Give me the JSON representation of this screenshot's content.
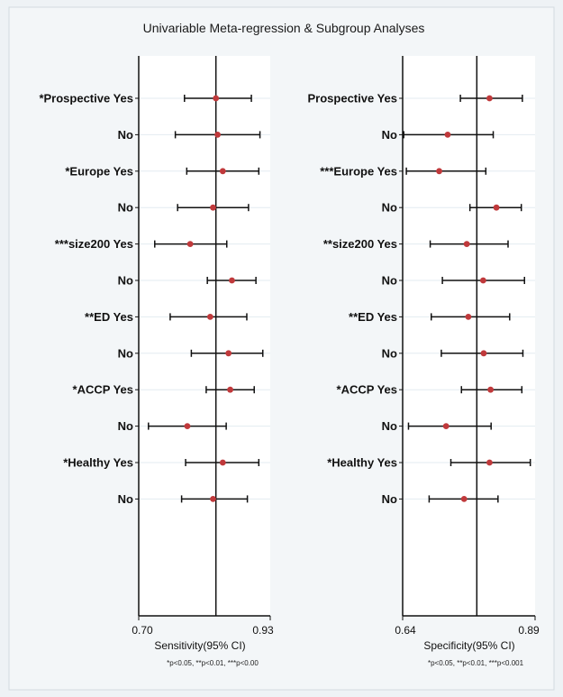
{
  "chart_data": {
    "type": "forest",
    "title": "Univariable Meta-regression & Subgroup Analyses",
    "rows": [
      "*Prospective Yes",
      "No",
      "*Europe Yes",
      "No",
      "***size200 Yes",
      "No",
      "**ED Yes",
      "No",
      "*ACCP Yes",
      "No",
      "*Healthy Yes",
      "No"
    ],
    "panels": [
      {
        "name": "sensitivity",
        "row_labels": [
          "*Prospective Yes",
          "No",
          "*Europe Yes",
          "No",
          "***size200 Yes",
          "No",
          "**ED Yes",
          "No",
          "*ACCP Yes",
          "No",
          "*Healthy Yes",
          "No"
        ],
        "xlabel": "Sensitivity(95% CI)",
        "xlim": [
          0.7,
          0.93
        ],
        "ticks": [
          "0.70",
          "0.93"
        ],
        "ref_line": 0.835,
        "estimates": [
          0.835,
          0.838,
          0.847,
          0.83,
          0.79,
          0.863,
          0.825,
          0.857,
          0.86,
          0.785,
          0.847,
          0.83
        ],
        "ci_low": [
          0.78,
          0.764,
          0.784,
          0.768,
          0.728,
          0.82,
          0.755,
          0.792,
          0.818,
          0.717,
          0.782,
          0.775
        ],
        "ci_high": [
          0.897,
          0.912,
          0.91,
          0.892,
          0.854,
          0.905,
          0.889,
          0.917,
          0.902,
          0.853,
          0.91,
          0.89
        ],
        "footnote": "*p<0.05, **p<0.01, ***p<0.00"
      },
      {
        "name": "specificity",
        "row_labels": [
          "Prospective Yes",
          "No",
          "***Europe Yes",
          "No",
          "**size200 Yes",
          "No",
          "**ED Yes",
          "No",
          "*ACCP Yes",
          "No",
          "*Healthy Yes",
          "No"
        ],
        "xlabel": "Specificity(95% CI)",
        "xlim": [
          0.64,
          0.89
        ],
        "ticks": [
          "0.64",
          "0.89"
        ],
        "ref_line": 0.78,
        "estimates": [
          0.804,
          0.725,
          0.709,
          0.817,
          0.761,
          0.792,
          0.764,
          0.793,
          0.806,
          0.722,
          0.804,
          0.756
        ],
        "ci_low": [
          0.749,
          0.642,
          0.647,
          0.767,
          0.692,
          0.715,
          0.694,
          0.713,
          0.751,
          0.651,
          0.731,
          0.69
        ],
        "ci_high": [
          0.866,
          0.811,
          0.797,
          0.864,
          0.839,
          0.87,
          0.842,
          0.867,
          0.865,
          0.807,
          0.881,
          0.82
        ],
        "footnote": "*p<0.05, **p<0.01, ***p<0.001"
      }
    ],
    "grid": true
  }
}
